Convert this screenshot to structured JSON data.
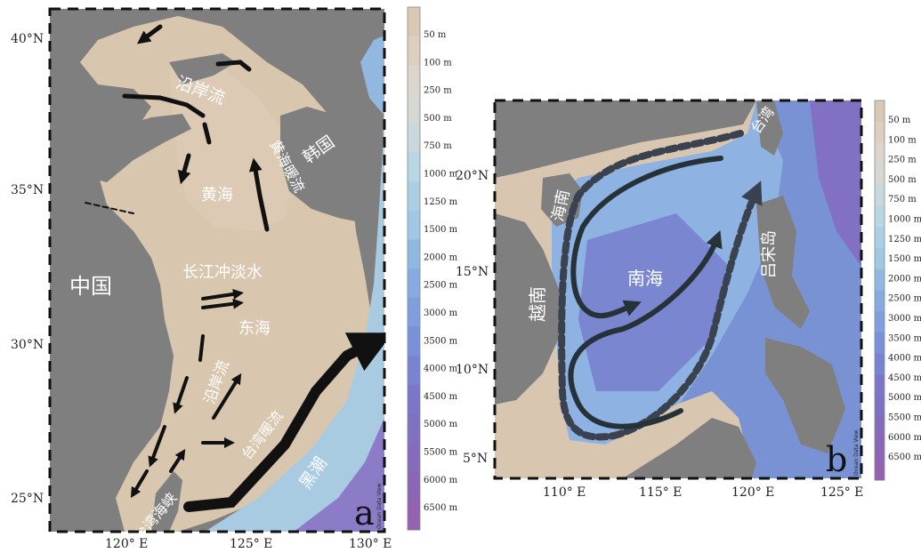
{
  "colorbar_labels": [
    "50 m",
    "100 m",
    "250 m",
    "500 m",
    "750 m",
    "1000 m",
    "1250 m",
    "1500 m",
    "2000 m",
    "2500 m",
    "3000 m",
    "3500 m",
    "4000 m",
    "4500 m",
    "5000 m",
    "5500 m",
    "6000 m",
    "6500 m"
  ],
  "colorbar_colors": [
    "#d9c8b4",
    "#dccfbf",
    "#dcd5cc",
    "#d6d8d5",
    "#c9d8dc",
    "#b9d6e3",
    "#abd0e6",
    "#9ec8e6",
    "#8fb9e3",
    "#86abe0",
    "#7f9ede",
    "#7a90da",
    "#7883d3",
    "#7b76ca",
    "#8070c2",
    "#866abc",
    "#8c66b6",
    "#9462b0"
  ],
  "map_a": {
    "panel_letter": "a",
    "odv_credit": "Ocean Data View",
    "lat_ticks": [
      "40°N",
      "35°N",
      "30°N",
      "25°N"
    ],
    "lon_ticks": [
      "120° E",
      "125° E",
      "130° E"
    ],
    "labels": {
      "china": "中国",
      "korea": "韩国",
      "yellow_sea": "黄海",
      "east_china_sea": "东海",
      "coastal_current_north": "沿岸流",
      "yellow_sea_warm_current": "黄海暖流",
      "changjiang_diluted_water": "长江冲淡水",
      "coastal_current_south": "沿岸流",
      "taiwan_warm_current": "台湾暖流",
      "kuroshio": "黑潮",
      "taiwan_strait": "台湾海峡"
    }
  },
  "map_b": {
    "panel_letter": "b",
    "odv_credit": "Ocean Data View",
    "lat_ticks": [
      "20°N",
      "15°N",
      "10°N",
      "5°N"
    ],
    "lon_ticks": [
      "110° E",
      "115° E",
      "120° E",
      "125° E"
    ],
    "labels": {
      "hainan": "海南",
      "vietnam": "越南",
      "south_china_sea": "南海",
      "taiwan": "台湾",
      "luzon": "吕宋岛"
    }
  }
}
